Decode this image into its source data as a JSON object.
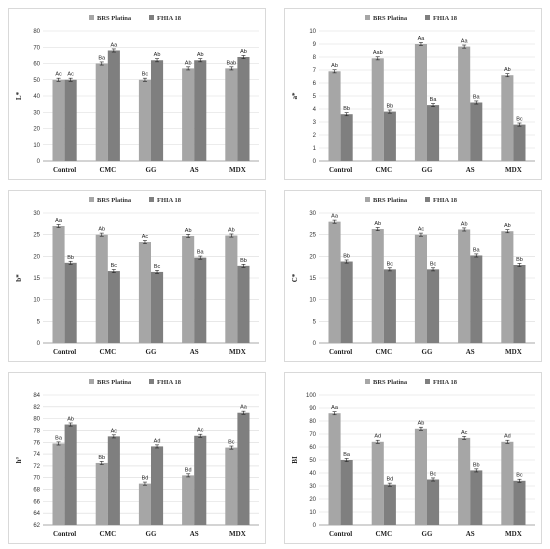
{
  "colors": {
    "series1": "#a6a6a6",
    "series2": "#7f7f7f",
    "grid": "#d9d9d9",
    "axis": "#8c8c8c"
  },
  "chart_data": [
    {
      "type": "bar",
      "ylabel": "L*",
      "ylim": [
        0,
        80
      ],
      "ystep": 10,
      "categories": [
        "Control",
        "CMC",
        "GG",
        "AS",
        "MDX"
      ],
      "series": [
        {
          "name": "BRS Platina",
          "values": [
            50,
            60,
            50,
            57,
            57
          ],
          "labels": [
            "Ac",
            "Ba",
            "Bc",
            "Ab",
            "Bab"
          ]
        },
        {
          "name": "FHIA 18",
          "values": [
            50,
            68,
            62,
            62,
            64
          ],
          "labels": [
            "Ac",
            "Aa",
            "Ab",
            "Ab",
            "Ab"
          ]
        }
      ],
      "legend": "top",
      "grid": true
    },
    {
      "type": "bar",
      "ylabel": "a*",
      "ylim": [
        0,
        10
      ],
      "ystep": 1,
      "categories": [
        "Control",
        "CMC",
        "GG",
        "AS",
        "MDX"
      ],
      "series": [
        {
          "name": "BRS Platina",
          "values": [
            6.9,
            7.9,
            9.0,
            8.8,
            6.6
          ],
          "labels": [
            "Ab",
            "Aab",
            "Aa",
            "Aa",
            "Ab"
          ]
        },
        {
          "name": "FHIA 18",
          "values": [
            3.6,
            3.8,
            4.3,
            4.5,
            2.8
          ],
          "labels": [
            "Bb",
            "Bb",
            "Ba",
            "Ba",
            "Bc"
          ]
        }
      ],
      "legend": "top",
      "grid": true
    },
    {
      "type": "bar",
      "ylabel": "b*",
      "ylim": [
        0,
        30
      ],
      "ystep": 5,
      "categories": [
        "Control",
        "CMC",
        "GG",
        "AS",
        "MDX"
      ],
      "series": [
        {
          "name": "BRS Platina",
          "values": [
            27.0,
            25.0,
            23.3,
            24.7,
            24.8
          ],
          "labels": [
            "Aa",
            "Ab",
            "Ac",
            "Ab",
            "Ab"
          ]
        },
        {
          "name": "FHIA 18",
          "values": [
            18.5,
            16.6,
            16.4,
            19.7,
            17.8
          ],
          "labels": [
            "Bb",
            "Bc",
            "Bc",
            "Ba",
            "Bb"
          ]
        }
      ],
      "legend": "top",
      "grid": true
    },
    {
      "type": "bar",
      "ylabel": "C*",
      "ylim": [
        0,
        30
      ],
      "ystep": 5,
      "categories": [
        "Control",
        "CMC",
        "GG",
        "AS",
        "MDX"
      ],
      "series": [
        {
          "name": "BRS Platina",
          "values": [
            28.0,
            26.3,
            25.0,
            26.2,
            25.8
          ],
          "labels": [
            "Aa",
            "Ab",
            "Ac",
            "Ab",
            "Ab"
          ]
        },
        {
          "name": "FHIA 18",
          "values": [
            18.8,
            17.0,
            17.0,
            20.2,
            18.0
          ],
          "labels": [
            "Bb",
            "Bc",
            "Bc",
            "Ba",
            "Bb"
          ]
        }
      ],
      "legend": "top",
      "grid": true
    },
    {
      "type": "bar",
      "ylabel": "h°",
      "ylim": [
        62,
        84
      ],
      "ystep": 2,
      "categories": [
        "Control",
        "CMC",
        "GG",
        "AS",
        "MDX"
      ],
      "series": [
        {
          "name": "BRS Platina",
          "values": [
            75.8,
            72.5,
            69.0,
            70.4,
            75.1
          ],
          "labels": [
            "Ba",
            "Bb",
            "Bd",
            "Bd",
            "Bc"
          ]
        },
        {
          "name": "FHIA 18",
          "values": [
            79.0,
            77.0,
            75.3,
            77.1,
            81.0
          ],
          "labels": [
            "Ab",
            "Ac",
            "Ad",
            "Ac",
            "Aa"
          ]
        }
      ],
      "legend": "top",
      "grid": true
    },
    {
      "type": "bar",
      "ylabel": "BI",
      "ylim": [
        0,
        100
      ],
      "ystep": 10,
      "categories": [
        "Control",
        "CMC",
        "GG",
        "AS",
        "MDX"
      ],
      "series": [
        {
          "name": "BRS Platina",
          "values": [
            86,
            64,
            74,
            67,
            64
          ],
          "labels": [
            "Aa",
            "Ad",
            "Ab",
            "Ac",
            "Ad"
          ]
        },
        {
          "name": "FHIA 18",
          "values": [
            50,
            31,
            35,
            42,
            34
          ],
          "labels": [
            "Ba",
            "Bd",
            "Bc",
            "Bb",
            "Bc"
          ]
        }
      ],
      "legend": "top",
      "grid": true
    }
  ]
}
